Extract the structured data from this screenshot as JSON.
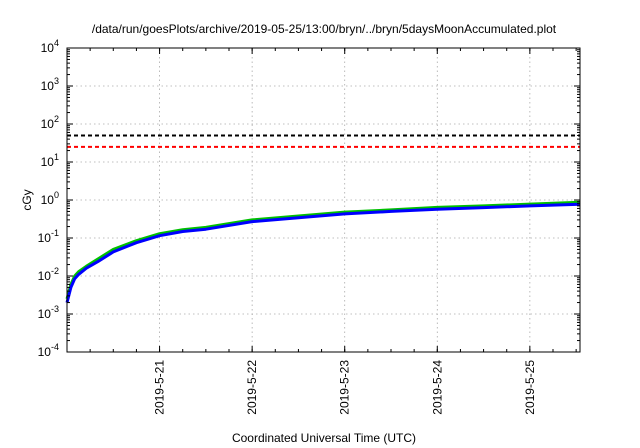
{
  "chart_data": {
    "type": "line",
    "title": "/data/run/goesPlots/archive/2019-05-25/13:00/bryn/../bryn/5daysMoonAccumulated.plot",
    "xlabel": "Coordinated Universal Time (UTC)",
    "ylabel": "cGy",
    "yscale": "log",
    "ylim": [
      0.0001,
      10000
    ],
    "xlim": [
      "2019-05-20 00:00",
      "2019-05-25 13:00"
    ],
    "grid": true,
    "y_ticks": [
      {
        "base": "10",
        "exp": "-4"
      },
      {
        "base": "10",
        "exp": "-3"
      },
      {
        "base": "10",
        "exp": "-2"
      },
      {
        "base": "10",
        "exp": "-1"
      },
      {
        "base": "10",
        "exp": "0"
      },
      {
        "base": "10",
        "exp": "1"
      },
      {
        "base": "10",
        "exp": "2"
      },
      {
        "base": "10",
        "exp": "3"
      },
      {
        "base": "10",
        "exp": "4"
      }
    ],
    "x_ticks": [
      "2019-5-21",
      "2019-5-22",
      "2019-5-23",
      "2019-5-24",
      "2019-5-25"
    ],
    "reference_lines": [
      {
        "y": 50,
        "color": "#000000",
        "style": "dashed"
      },
      {
        "y": 25,
        "color": "#ff0000",
        "style": "dashed"
      }
    ],
    "series": [
      {
        "color": "#00c000",
        "x": [
          "2019-05-20 00:00",
          "2019-05-20 01:00",
          "2019-05-20 02:00",
          "2019-05-20 03:00",
          "2019-05-20 05:00",
          "2019-05-20 08:00",
          "2019-05-20 12:00",
          "2019-05-20 18:00",
          "2019-05-21 00:00",
          "2019-05-21 06:00",
          "2019-05-21 12:00",
          "2019-05-22 00:00",
          "2019-05-22 12:00",
          "2019-05-23 00:00",
          "2019-05-23 12:00",
          "2019-05-24 00:00",
          "2019-05-24 12:00",
          "2019-05-25 00:00",
          "2019-05-25 13:00"
        ],
        "y": [
          0.0025,
          0.006,
          0.01,
          0.013,
          0.018,
          0.028,
          0.05,
          0.085,
          0.13,
          0.165,
          0.19,
          0.3,
          0.38,
          0.48,
          0.55,
          0.64,
          0.7,
          0.78,
          0.87
        ]
      },
      {
        "color": "#0000ff",
        "x": [
          "2019-05-20 00:00",
          "2019-05-20 01:00",
          "2019-05-20 02:00",
          "2019-05-20 03:00",
          "2019-05-20 05:00",
          "2019-05-20 08:00",
          "2019-05-20 12:00",
          "2019-05-20 18:00",
          "2019-05-21 00:00",
          "2019-05-21 06:00",
          "2019-05-21 12:00",
          "2019-05-22 00:00",
          "2019-05-22 12:00",
          "2019-05-23 00:00",
          "2019-05-23 12:00",
          "2019-05-24 00:00",
          "2019-05-24 12:00",
          "2019-05-25 00:00",
          "2019-05-25 13:00"
        ],
        "y": [
          0.002,
          0.005,
          0.0085,
          0.011,
          0.016,
          0.024,
          0.043,
          0.075,
          0.115,
          0.148,
          0.17,
          0.27,
          0.34,
          0.43,
          0.5,
          0.57,
          0.63,
          0.7,
          0.77
        ]
      }
    ]
  }
}
